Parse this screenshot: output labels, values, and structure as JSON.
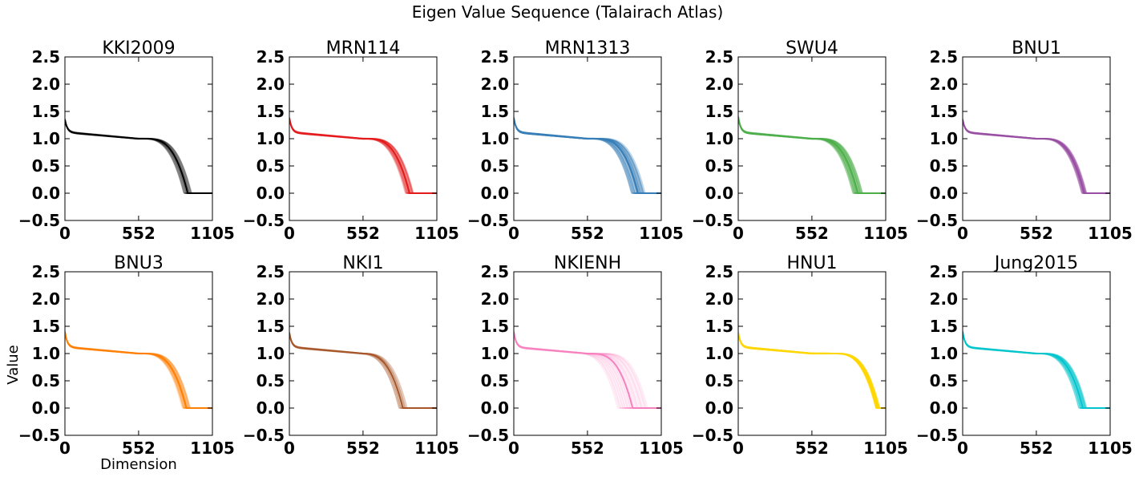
{
  "figure": {
    "title": "Eigen Value Sequence (Talairach Atlas)",
    "ylabel": "Value",
    "xlabel": "Dimension"
  },
  "chart_data": {
    "type": "line",
    "title": "Eigen Value Sequence (Talairach Atlas)",
    "xlabel": "Dimension",
    "ylabel": "Value",
    "xlim": [
      0,
      1105
    ],
    "ylim": [
      -0.5,
      2.5
    ],
    "xticks": [
      "0",
      "552",
      "1105"
    ],
    "yticks": [
      "−0.5",
      "0.0",
      "0.5",
      "1.0",
      "1.5",
      "2.0",
      "2.5"
    ],
    "grid": false,
    "panels": [
      {
        "name": "KKI2009",
        "color": "#000000",
        "start": 1.35,
        "plateau_end": 1.0,
        "cutoff_min": 890,
        "cutoff_max": 950,
        "band_alpha": 0.35
      },
      {
        "name": "MRN114",
        "color": "#e41a1c",
        "start": 1.38,
        "plateau_end": 1.0,
        "cutoff_min": 870,
        "cutoff_max": 930,
        "band_alpha": 0.45
      },
      {
        "name": "MRN1313",
        "color": "#377eb8",
        "start": 1.38,
        "plateau_end": 1.0,
        "cutoff_min": 880,
        "cutoff_max": 980,
        "band_alpha": 0.7
      },
      {
        "name": "SWU4",
        "color": "#4daf4a",
        "start": 1.4,
        "plateau_end": 1.0,
        "cutoff_min": 860,
        "cutoff_max": 930,
        "band_alpha": 0.7
      },
      {
        "name": "BNU1",
        "color": "#984ea3",
        "start": 1.35,
        "plateau_end": 1.0,
        "cutoff_min": 890,
        "cutoff_max": 930,
        "band_alpha": 0.45
      },
      {
        "name": "BNU3",
        "color": "#ff7f00",
        "start": 1.4,
        "plateau_end": 1.0,
        "cutoff_min": 880,
        "cutoff_max": 940,
        "band_alpha": 0.4
      },
      {
        "name": "NKI1",
        "color": "#a65628",
        "start": 1.38,
        "plateau_end": 1.0,
        "cutoff_min": 820,
        "cutoff_max": 880,
        "band_alpha": 0.3
      },
      {
        "name": "NKIENH",
        "color": "#f781bf",
        "start": 1.4,
        "plateau_end": 1.0,
        "cutoff_min": 780,
        "cutoff_max": 1000,
        "band_alpha": 0.35
      },
      {
        "name": "HNU1",
        "color": "#ffd700",
        "start": 1.38,
        "plateau_end": 1.0,
        "cutoff_min": 1030,
        "cutoff_max": 1060,
        "band_alpha": 0.75
      },
      {
        "name": "Jung2015",
        "color": "#00c5cd",
        "start": 1.4,
        "plateau_end": 1.0,
        "cutoff_min": 870,
        "cutoff_max": 930,
        "band_alpha": 0.55
      }
    ]
  }
}
